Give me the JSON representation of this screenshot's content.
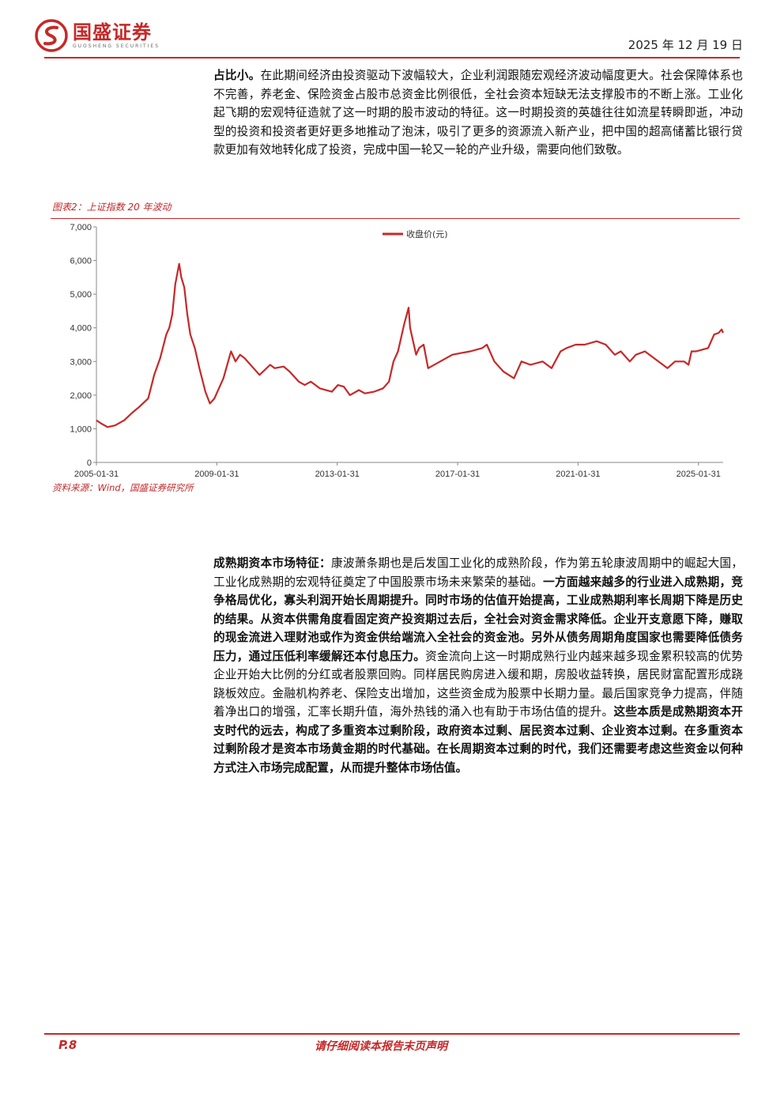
{
  "header": {
    "brand_cn": "国盛证券",
    "brand_en": "GUOSHENG SECURITIES",
    "date": "2025 年 12 月 19 日",
    "brand_color": "#c62828"
  },
  "para1": {
    "lead": "占比小。",
    "text": "在此期间经济由投资驱动下波幅较大，企业利润跟随宏观经济波动幅度更大。社会保障体系也不完善，养老金、保险资金占股市总资金比例很低，全社会资本短缺无法支撑股市的不断上涨。工业化起飞期的宏观特征造就了这一时期的股市波动的特征。这一时期投资的英雄往往如流星转瞬即逝，冲动型的投资和投资者更好更多地推动了泡沫，吸引了更多的资源流入新产业，把中国的超高储蓄比银行贷款更加有效地转化成了投资，完成中国一轮又一轮的产业升级，需要向他们致敬。"
  },
  "figure": {
    "title": "图表2：上证指数 20 年波动",
    "source": "资料来源：Wind，国盛证券研究所"
  },
  "chart_data": {
    "type": "line",
    "title": "",
    "xlabel": "",
    "ylabel": "",
    "ylim": [
      0,
      7000
    ],
    "yticks": [
      0,
      1000,
      2000,
      3000,
      4000,
      5000,
      6000,
      7000
    ],
    "ytick_labels": [
      "0",
      "1,000",
      "2,000",
      "3,000",
      "4,000",
      "5,000",
      "6,000",
      "7,000"
    ],
    "xlim": [
      2005.08,
      2025.9
    ],
    "xticks": [
      2005.08,
      2009.08,
      2013.08,
      2017.08,
      2021.08,
      2025.08
    ],
    "xtick_labels": [
      "2005-01-31",
      "2009-01-31",
      "2013-01-31",
      "2017-01-31",
      "2021-01-31",
      "2025-01-31"
    ],
    "legend": "top-center",
    "grid": false,
    "series": [
      {
        "name": "收盘价(元)",
        "color": "#c62828",
        "x": [
          2005.08,
          2005.25,
          2005.45,
          2005.7,
          2006.0,
          2006.3,
          2006.5,
          2006.8,
          2007.0,
          2007.2,
          2007.4,
          2007.5,
          2007.6,
          2007.7,
          2007.83,
          2007.9,
          2008.0,
          2008.1,
          2008.2,
          2008.35,
          2008.5,
          2008.7,
          2008.85,
          2009.0,
          2009.3,
          2009.55,
          2009.7,
          2009.85,
          2010.0,
          2010.3,
          2010.5,
          2010.85,
          2011.0,
          2011.3,
          2011.5,
          2011.8,
          2012.0,
          2012.2,
          2012.5,
          2012.9,
          2013.1,
          2013.3,
          2013.5,
          2013.8,
          2014.0,
          2014.3,
          2014.6,
          2014.8,
          2014.95,
          2015.1,
          2015.3,
          2015.45,
          2015.5,
          2015.6,
          2015.7,
          2015.8,
          2015.95,
          2016.1,
          2016.5,
          2016.9,
          2017.2,
          2017.5,
          2017.9,
          2018.05,
          2018.3,
          2018.6,
          2018.95,
          2019.2,
          2019.5,
          2019.9,
          2020.2,
          2020.5,
          2020.7,
          2021.0,
          2021.3,
          2021.7,
          2022.0,
          2022.3,
          2022.5,
          2022.8,
          2023.0,
          2023.3,
          2023.6,
          2023.9,
          2024.05,
          2024.3,
          2024.6,
          2024.75,
          2024.85,
          2025.0,
          2025.2,
          2025.4,
          2025.6,
          2025.75,
          2025.85,
          2025.9
        ],
        "y": [
          1250,
          1150,
          1050,
          1100,
          1250,
          1500,
          1650,
          1900,
          2600,
          3100,
          3800,
          4000,
          4400,
          5300,
          5900,
          5500,
          5200,
          4400,
          3800,
          3400,
          2800,
          2100,
          1750,
          1900,
          2500,
          3300,
          3000,
          3200,
          3100,
          2800,
          2600,
          2900,
          2800,
          2850,
          2700,
          2400,
          2300,
          2400,
          2200,
          2100,
          2300,
          2250,
          2000,
          2150,
          2050,
          2100,
          2200,
          2400,
          3000,
          3300,
          4100,
          4600,
          4000,
          3600,
          3200,
          3400,
          3500,
          2800,
          3000,
          3200,
          3250,
          3300,
          3400,
          3500,
          3000,
          2700,
          2500,
          3000,
          2900,
          3000,
          2800,
          3300,
          3400,
          3500,
          3500,
          3600,
          3500,
          3200,
          3300,
          3000,
          3200,
          3300,
          3100,
          2900,
          2800,
          3000,
          3000,
          2900,
          3300,
          3300,
          3350,
          3400,
          3800,
          3850,
          3950,
          3850
        ]
      }
    ]
  },
  "para2": {
    "lead": "成熟期资本市场特征：",
    "t1": "康波萧条期也是后发国工业化的成熟阶段，作为第五轮康波周期中的崛起大国，工业化成熟期的宏观特征奠定了中国股票市场未来繁荣的基础。",
    "b1": "一方面越来越多的行业进入成熟期，竞争格局优化，寡头利润开始长周期提升。同时市场的估值开始提高，工业成熟期利率长周期下降是历史的结果。从资本供需角度看固定资产投资期过去后，全社会对资金需求降低。企业开支意愿下降，赚取的现金流进入理财池或作为资金供给端流入全社会的资金池。另外从债务周期角度国家也需要降低债务压力，通过压低利率缓解还本付息压力。",
    "t2": "资金流向上这一时期成熟行业内越来越多现金累积较高的优势企业开始大比例的分红或者股票回购。同样居民购房进入缓和期，房股收益转换，居民财富配置形成跷跷板效应。金融机构养老、保险支出增加，这些资金成为股票中长期力量。最后国家竞争力提高，伴随着净出口的增强，汇率长期升值，海外热钱的涌入也有助于市场估值的提升。",
    "b2": "这些本质是成熟期资本开支时代的远去，构成了多重资本过剩阶段，政府资本过剩、居民资本过剩、企业资本过剩。在多重资本过剩阶段才是资本市场黄金期的时代基础。在长周期资本过剩的时代，我们还需要考虑这些资金以何种方式注入市场完成配置，从而提升整体市场估值。"
  },
  "footer": {
    "page": "P.8",
    "disclaimer": "请仔细阅读本报告末页声明"
  }
}
